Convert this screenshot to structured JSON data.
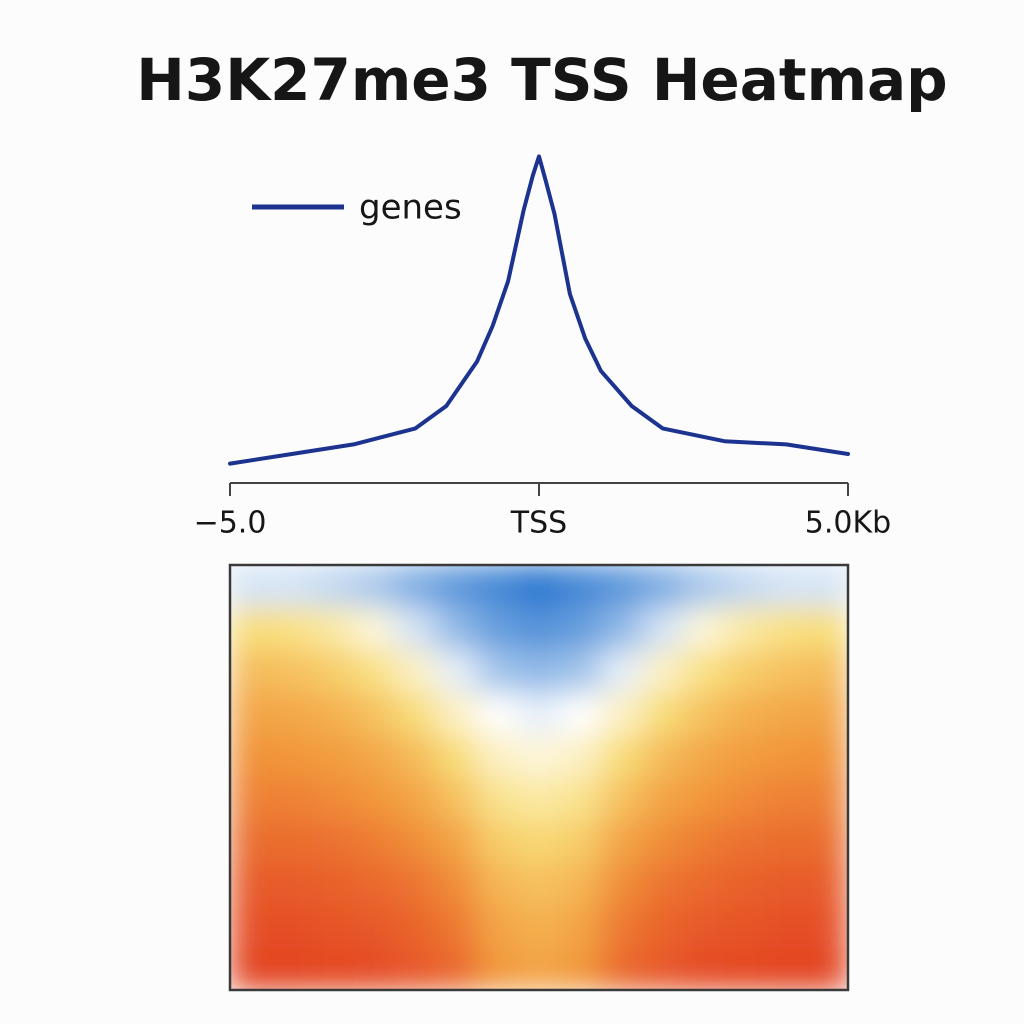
{
  "chart_data": [
    {
      "type": "line",
      "title": "H3K27me3  TSS Heatmap",
      "x": [
        -5,
        -4,
        -3,
        -2,
        -1.5,
        -1,
        -0.75,
        -0.5,
        -0.25,
        -0.1,
        0,
        0.1,
        0.25,
        0.5,
        0.75,
        1,
        1.5,
        2,
        3,
        4,
        5
      ],
      "series": [
        {
          "name": "genes",
          "color": "#1c3390",
          "values": [
            0.02,
            0.05,
            0.08,
            0.13,
            0.2,
            0.34,
            0.45,
            0.59,
            0.81,
            0.92,
            0.98,
            0.91,
            0.8,
            0.55,
            0.41,
            0.31,
            0.2,
            0.13,
            0.09,
            0.08,
            0.05
          ]
        }
      ],
      "xlim": [
        -5,
        5
      ],
      "xticks": [
        {
          "value": -5,
          "label": "−5.0"
        },
        {
          "value": 0,
          "label": "TSS"
        },
        {
          "value": 5,
          "label": "5.0Kb"
        }
      ],
      "ylim": [
        0,
        1
      ],
      "legend": "upper left"
    },
    {
      "type": "heatmap",
      "zlim": [
        0,
        1
      ],
      "colorscale": [
        "#2a78d0",
        "#ffffff",
        "#f8de78",
        "#f2963a",
        "#df2f1d"
      ],
      "z": [
        [
          0.2,
          0.2,
          0.18,
          0.15,
          0.1,
          0.06,
          0.03,
          0.0,
          0.03,
          0.06,
          0.1,
          0.15,
          0.18,
          0.2,
          0.2
        ],
        [
          0.5,
          0.48,
          0.42,
          0.32,
          0.2,
          0.12,
          0.07,
          0.05,
          0.07,
          0.12,
          0.2,
          0.32,
          0.42,
          0.48,
          0.5
        ],
        [
          0.62,
          0.6,
          0.56,
          0.48,
          0.36,
          0.22,
          0.14,
          0.12,
          0.14,
          0.22,
          0.36,
          0.48,
          0.56,
          0.6,
          0.62
        ],
        [
          0.7,
          0.69,
          0.66,
          0.6,
          0.5,
          0.36,
          0.25,
          0.22,
          0.25,
          0.36,
          0.5,
          0.6,
          0.66,
          0.69,
          0.7
        ],
        [
          0.76,
          0.75,
          0.73,
          0.69,
          0.62,
          0.5,
          0.36,
          0.32,
          0.36,
          0.5,
          0.62,
          0.69,
          0.73,
          0.75,
          0.76
        ],
        [
          0.8,
          0.8,
          0.78,
          0.75,
          0.7,
          0.6,
          0.46,
          0.42,
          0.46,
          0.6,
          0.7,
          0.75,
          0.78,
          0.8,
          0.8
        ],
        [
          0.85,
          0.85,
          0.84,
          0.81,
          0.77,
          0.7,
          0.56,
          0.52,
          0.56,
          0.7,
          0.77,
          0.81,
          0.84,
          0.85,
          0.85
        ],
        [
          0.89,
          0.89,
          0.88,
          0.86,
          0.83,
          0.77,
          0.64,
          0.6,
          0.64,
          0.77,
          0.83,
          0.86,
          0.88,
          0.89,
          0.89
        ],
        [
          0.92,
          0.92,
          0.91,
          0.9,
          0.87,
          0.82,
          0.7,
          0.66,
          0.7,
          0.82,
          0.87,
          0.9,
          0.91,
          0.92,
          0.92
        ],
        [
          0.95,
          0.95,
          0.94,
          0.93,
          0.9,
          0.86,
          0.74,
          0.7,
          0.74,
          0.86,
          0.9,
          0.93,
          0.94,
          0.95,
          0.95
        ]
      ]
    }
  ]
}
